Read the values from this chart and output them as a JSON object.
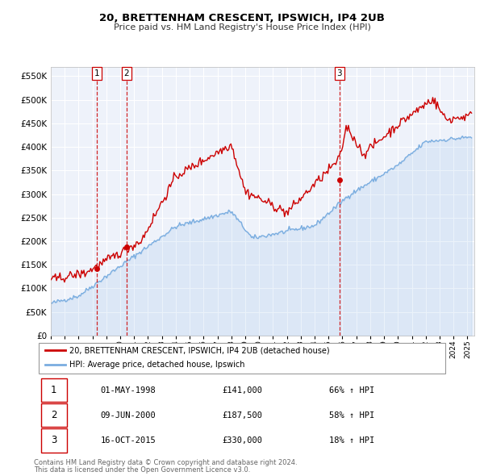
{
  "title": "20, BRETTENHAM CRESCENT, IPSWICH, IP4 2UB",
  "subtitle": "Price paid vs. HM Land Registry's House Price Index (HPI)",
  "legend_line1": "20, BRETTENHAM CRESCENT, IPSWICH, IP4 2UB (detached house)",
  "legend_line2": "HPI: Average price, detached house, Ipswich",
  "footer1": "Contains HM Land Registry data © Crown copyright and database right 2024.",
  "footer2": "This data is licensed under the Open Government Licence v3.0.",
  "sale_color": "#cc0000",
  "hpi_color": "#7aade0",
  "background_color": "#eef2fa",
  "grid_color": "#ffffff",
  "transactions": [
    {
      "num": 1,
      "date": "01-MAY-1998",
      "price": "£141,000",
      "pct": "66% ↑ HPI"
    },
    {
      "num": 2,
      "date": "09-JUN-2000",
      "price": "£187,500",
      "pct": "58% ↑ HPI"
    },
    {
      "num": 3,
      "date": "16-OCT-2015",
      "price": "£330,000",
      "pct": "18% ↑ HPI"
    }
  ],
  "transaction_dates_decimal": [
    1998.33,
    2000.44,
    2015.79
  ],
  "transaction_prices": [
    141000,
    187500,
    330000
  ],
  "ylim": [
    0,
    570000
  ],
  "yticks": [
    0,
    50000,
    100000,
    150000,
    200000,
    250000,
    300000,
    350000,
    400000,
    450000,
    500000,
    550000
  ],
  "xlim_start": 1995.0,
  "xlim_end": 2025.5
}
